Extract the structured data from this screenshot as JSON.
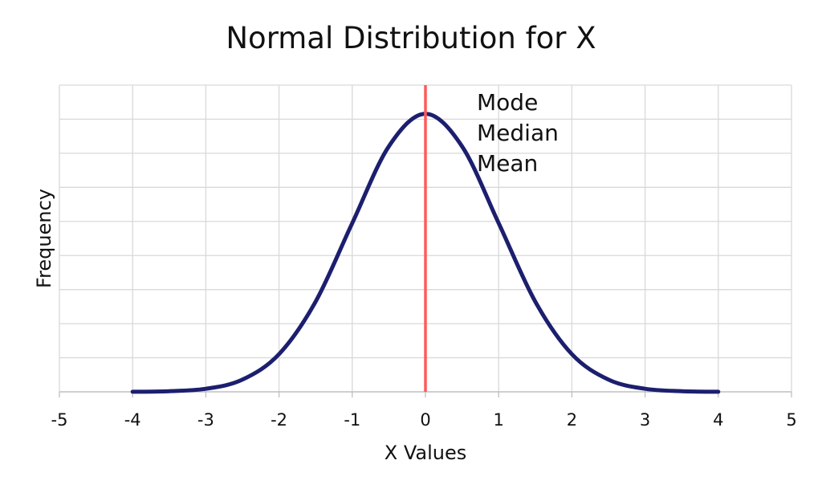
{
  "chart_data": {
    "type": "line",
    "title": "Normal Distribution for X",
    "xlabel": "X Values",
    "ylabel": "Frequency",
    "xlim": [
      -5,
      5
    ],
    "ylim": [
      0,
      0.44
    ],
    "x_ticks": [
      "-5",
      "-4",
      "-3",
      "-2",
      "-1",
      "0",
      "1",
      "2",
      "3",
      "4",
      "5"
    ],
    "grid": true,
    "series": [
      {
        "color": "#1c1f6e",
        "x": [
          -4,
          -3.5,
          -3,
          -2.5,
          -2,
          -1.5,
          -1,
          -0.5,
          0,
          0.5,
          1,
          1.5,
          2,
          2.5,
          3,
          3.5,
          4
        ],
        "y": [
          0.0001,
          0.0009,
          0.0044,
          0.0175,
          0.054,
          0.1295,
          0.242,
          0.3521,
          0.3989,
          0.3521,
          0.242,
          0.1295,
          0.054,
          0.0175,
          0.0044,
          0.0009,
          0.0001
        ]
      }
    ],
    "reference_line": {
      "x": 0,
      "color": "#ff5a5a"
    },
    "annotations": [
      "Mode",
      "Median",
      "Mean"
    ]
  }
}
